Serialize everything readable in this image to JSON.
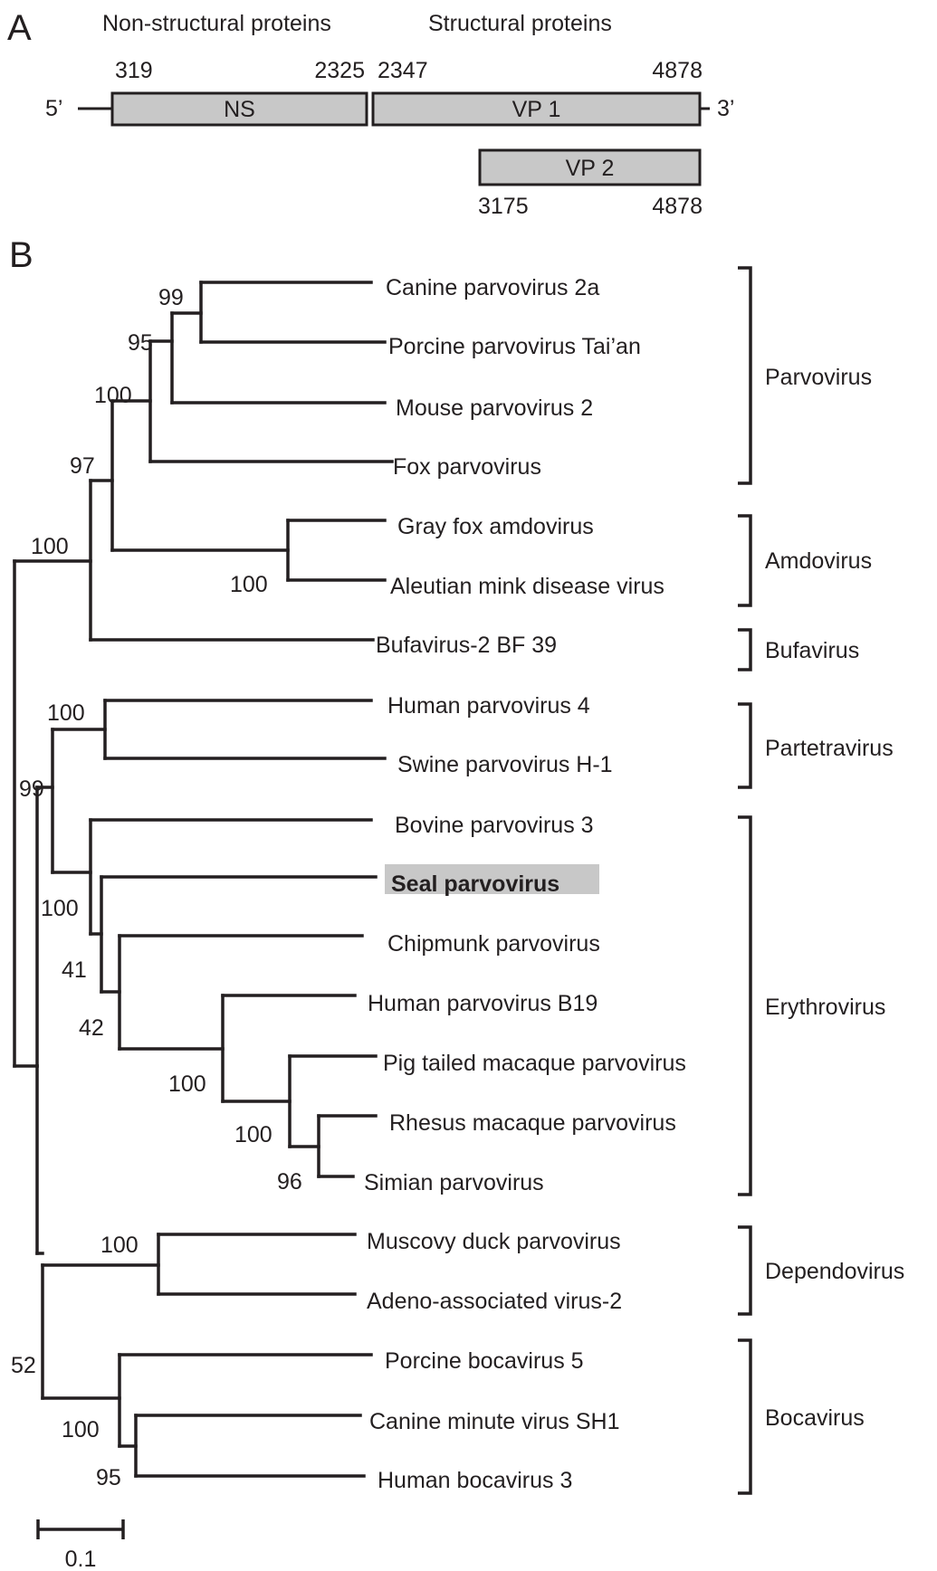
{
  "panel_a": {
    "letter": "A",
    "region_labels": {
      "non_structural": "Non-structural proteins",
      "structural": "Structural proteins"
    },
    "five_prime": "5’",
    "three_prime": "3’",
    "orfs": [
      {
        "name": "NS",
        "start": "319",
        "end": "2325"
      },
      {
        "name": "VP 1",
        "start": "2347",
        "end": "4878"
      },
      {
        "name": "VP 2",
        "start": "3175",
        "end": "4878"
      }
    ],
    "box_fill": "#c8c8c8"
  },
  "panel_b": {
    "letter": "B",
    "taxa": [
      {
        "id": "t0",
        "label": "Canine parvovirus 2a"
      },
      {
        "id": "t1",
        "label": "Porcine parvovirus Tai’an"
      },
      {
        "id": "t2",
        "label": "Mouse parvovirus 2"
      },
      {
        "id": "t3",
        "label": "Fox parvovirus"
      },
      {
        "id": "t4",
        "label": "Gray fox amdovirus"
      },
      {
        "id": "t5",
        "label": "Aleutian mink disease virus"
      },
      {
        "id": "t6",
        "label": "Bufavirus-2 BF 39"
      },
      {
        "id": "t7",
        "label": "Human parvovirus 4"
      },
      {
        "id": "t8",
        "label": "Swine parvovirus H-1"
      },
      {
        "id": "t9",
        "label": "Bovine parvovirus 3"
      },
      {
        "id": "t10",
        "label": "Seal parvovirus",
        "highlight": true
      },
      {
        "id": "t11",
        "label": "Chipmunk parvovirus"
      },
      {
        "id": "t12",
        "label": "Human parvovirus B19"
      },
      {
        "id": "t13",
        "label": "Pig tailed macaque parvovirus"
      },
      {
        "id": "t14",
        "label": "Rhesus macaque parvovirus"
      },
      {
        "id": "t15",
        "label": "Simian parvovirus"
      },
      {
        "id": "t16",
        "label": "Muscovy duck parvovirus"
      },
      {
        "id": "t17",
        "label": "Adeno-associated virus-2"
      },
      {
        "id": "t18",
        "label": "Porcine bocavirus 5"
      },
      {
        "id": "t19",
        "label": "Canine minute virus SH1"
      },
      {
        "id": "t20",
        "label": "Human bocavirus 3"
      }
    ],
    "bootstrap_values": [
      "99",
      "95",
      "100",
      "97",
      "100",
      "100",
      "100",
      "99",
      "100",
      "41",
      "42",
      "100",
      "100",
      "96",
      "100",
      "100",
      "95",
      "52"
    ],
    "genera": [
      {
        "name": "Parvovirus",
        "first_taxon": 0,
        "last_taxon": 3
      },
      {
        "name": "Amdovirus",
        "first_taxon": 4,
        "last_taxon": 5
      },
      {
        "name": "Bufavirus",
        "first_taxon": 6,
        "last_taxon": 6
      },
      {
        "name": "Partetravirus",
        "first_taxon": 7,
        "last_taxon": 8
      },
      {
        "name": "Erythrovirus",
        "first_taxon": 9,
        "last_taxon": 15
      },
      {
        "name": "Dependovirus",
        "first_taxon": 16,
        "last_taxon": 17
      },
      {
        "name": "Bocavirus",
        "first_taxon": 18,
        "last_taxon": 20
      }
    ],
    "scale_bar": {
      "label": "0.1",
      "value": 0.1
    },
    "highlight_fill": "#c8c8c8"
  }
}
